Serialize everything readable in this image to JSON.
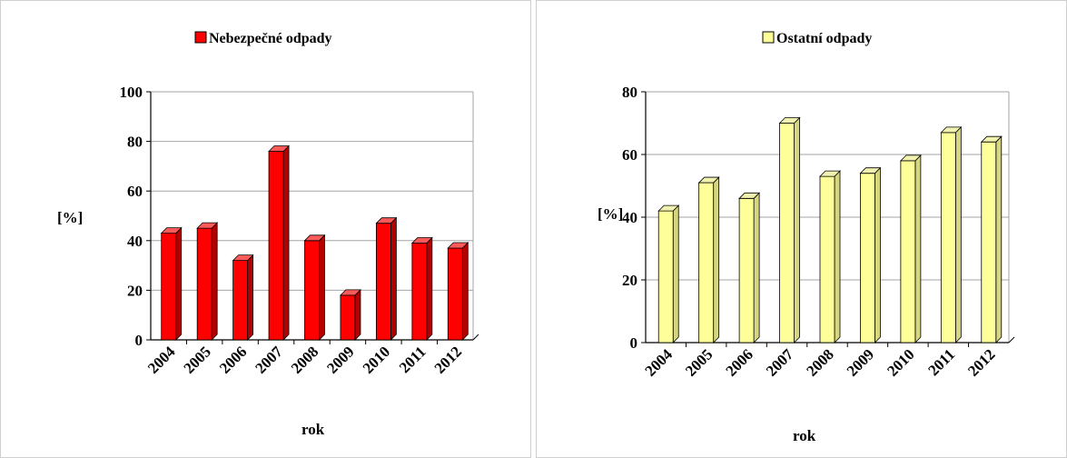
{
  "chart_data": [
    {
      "type": "bar",
      "title": "",
      "legend": "Nebezpečné odpady",
      "legend_position": "top",
      "categories": [
        "2004",
        "2005",
        "2006",
        "2007",
        "2008",
        "2009",
        "2010",
        "2011",
        "2012"
      ],
      "values": [
        43,
        45,
        32,
        76,
        40,
        18,
        47,
        39,
        37
      ],
      "ylim": [
        0,
        100
      ],
      "yticks": [
        0,
        20,
        40,
        60,
        80,
        100
      ],
      "xlabel": "rok",
      "ylabel": "[%]",
      "grid": true,
      "color": "#ff0000",
      "color_top": "#ff5a5a",
      "color_side": "#b30000"
    },
    {
      "type": "bar",
      "title": "",
      "legend": "Ostatní odpady",
      "legend_position": "top",
      "categories": [
        "2004",
        "2005",
        "2006",
        "2007",
        "2008",
        "2009",
        "2010",
        "2011",
        "2012"
      ],
      "values": [
        42,
        51,
        46,
        70,
        53,
        54,
        58,
        67,
        64
      ],
      "ylim": [
        0,
        80
      ],
      "yticks": [
        0,
        20,
        40,
        60,
        80
      ],
      "xlabel": "rok",
      "ylabel": "[%]",
      "grid": true,
      "color": "#ffff99",
      "color_top": "#f2f2b0",
      "color_side": "#d6d680"
    }
  ]
}
